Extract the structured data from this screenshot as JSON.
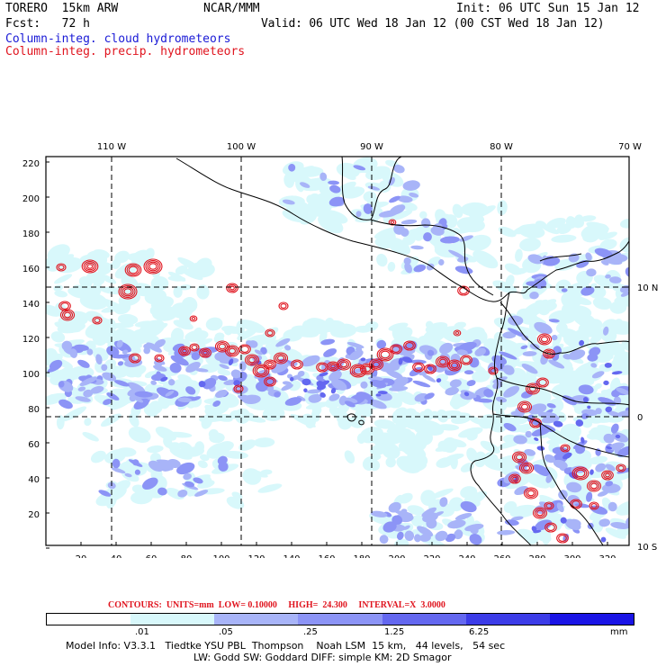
{
  "header": {
    "model": "TORERO  15km ARW",
    "center": "NCAR/MMM",
    "init": "Init: 06 UTC Sun 15 Jan 12",
    "fcst": "Fcst:   72 h",
    "valid": "Valid: 06 UTC Wed 18 Jan 12 (00 CST Wed 18 Jan 12)",
    "field1": "Column-integ. cloud hydrometeors",
    "field2": "Column-integ. precip. hydrometeors"
  },
  "colors": {
    "field1_text": "#1a1ad6",
    "field2_text": "#e0141e",
    "precip_contour": "#e0141e",
    "fill_levels": [
      "#ffffff",
      "#d8f8fb",
      "#a8b4f8",
      "#8c94f6",
      "#6468f0",
      "#3c3ce8",
      "#1a14e6"
    ]
  },
  "map": {
    "lon_labels": [
      "110 W",
      "100 W",
      "90 W",
      "80 W",
      "70 W"
    ],
    "lat_labels": [
      "10 N",
      "0",
      "10 S"
    ],
    "grid_y_labels": [
      "220",
      "200",
      "180",
      "160",
      "140",
      "120",
      "100",
      "80",
      "60",
      "40",
      "20"
    ],
    "grid_x_labels": [
      "20",
      "40",
      "60",
      "80",
      "100",
      "120",
      "140",
      "160",
      "180",
      "200",
      "220",
      "240",
      "260",
      "280",
      "300",
      "320"
    ]
  },
  "contour_info": "CONTOURS:  UNITS=mm  LOW= 0.10000     HIGH=  24.300     INTERVAL=X  3.0000",
  "colorbar": {
    "labels": [
      ".01",
      ".05",
      ".25",
      "1.25",
      "6.25"
    ],
    "unit": "mm"
  },
  "footer": {
    "line1": "Model Info: V3.3.1   Tiedtke YSU PBL  Thompson    Noah LSM  15 km,   44 levels,   54 sec",
    "line2": "LW: Godd SW: Goddard DIFF: simple KM: 2D Smagor"
  }
}
